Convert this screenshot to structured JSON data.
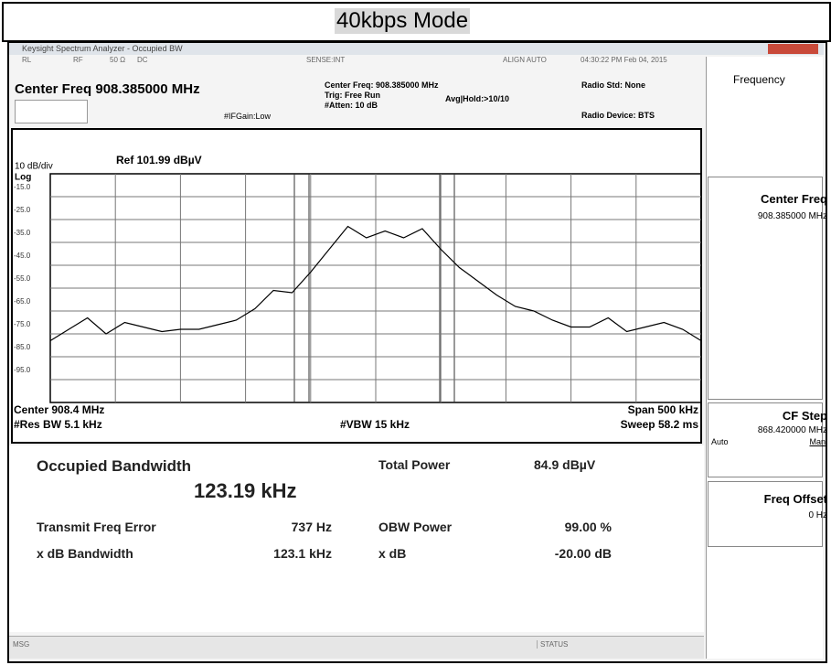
{
  "banner": "40kbps Mode",
  "window_title": "Keysight Spectrum Analyzer - Occupied BW",
  "status_bar": [
    "RL",
    "RF",
    "50 Ω",
    "DC",
    "SENSE:INT",
    "ALIGN AUTO",
    "04:30:22 PM Feb 04, 2015"
  ],
  "header": {
    "center_freq": "Center Freq 908.385000 MHz",
    "if_gain": "#IFGain:Low",
    "settings": [
      "Center Freq: 908.385000 MHz",
      "Trig: Free Run",
      "#Atten: 10 dB"
    ],
    "avg_hold": "Avg|Hold:>10/10",
    "radio_std": "Radio Std: None",
    "radio_device": "Radio Device: BTS"
  },
  "softkeys": {
    "menu": "Frequency",
    "center_freq": {
      "label": "Center Freq",
      "value": "908.385000 MHz"
    },
    "cf_step": {
      "label": "CF Step",
      "value": "868.420000 MHz",
      "auto": "Auto",
      "man": "Man"
    },
    "freq_offset": {
      "label": "Freq Offset",
      "value": "0 Hz"
    }
  },
  "chart_data": {
    "type": "line",
    "scale": "10 dB/div",
    "ref": "Ref 101.99 dBµV",
    "log": "Log",
    "ylim": [
      -105,
      -5
    ],
    "yticks": [
      {
        "value": -15,
        "label": "-15.0"
      },
      {
        "value": -25,
        "label": "-25.0"
      },
      {
        "value": -35,
        "label": "-35.0"
      },
      {
        "value": -45,
        "label": "-45.0"
      },
      {
        "value": -55,
        "label": "-55.0"
      },
      {
        "value": -65,
        "label": "-65.0"
      },
      {
        "value": -75,
        "label": "-75.0"
      },
      {
        "value": -85,
        "label": "-85.0"
      },
      {
        "value": -95,
        "label": "-95.0"
      }
    ],
    "values": [
      -78,
      -73,
      -68,
      -75,
      -70,
      -72,
      -74,
      -73,
      -73,
      -71,
      -69,
      -64,
      -56,
      -57,
      -48,
      -38,
      -28,
      -33,
      -30,
      -33,
      -29,
      -38,
      -46,
      -52,
      -58,
      -63,
      -65,
      -69,
      -72,
      -72,
      -68,
      -74,
      -72,
      -70,
      -73,
      -78
    ],
    "color": "#000000",
    "grid": true,
    "footer": [
      "Center 908.4 MHz",
      "#Res BW 5.1 kHz",
      "#VBW 15 kHz",
      "Span 500 kHz",
      "Sweep 58.2 ms"
    ]
  },
  "results": {
    "title": "Occupied Bandwidth",
    "bandwidth": "123.19 kHz",
    "total_power": [
      "Total Power",
      "84.9 dBµV"
    ],
    "rows": [
      [
        "Transmit Freq Error",
        "737 Hz",
        "OBW Power",
        "99.00 %"
      ],
      [
        "x dB Bandwidth",
        "123.1 kHz",
        "x dB",
        "-20.00 dB"
      ]
    ]
  },
  "message_bar": {
    "msg": "MSG",
    "status": "STATUS"
  }
}
